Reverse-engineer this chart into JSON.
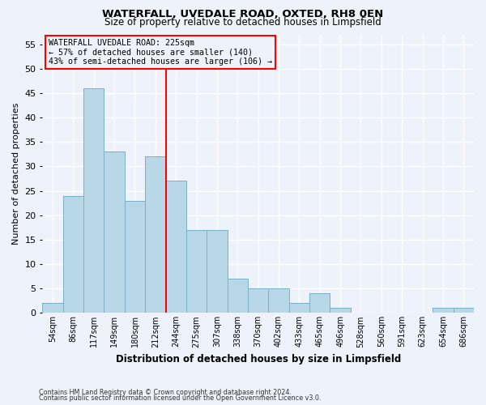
{
  "title": "WATERFALL, UVEDALE ROAD, OXTED, RH8 0EN",
  "subtitle": "Size of property relative to detached houses in Limpsfield",
  "xlabel": "Distribution of detached houses by size in Limpsfield",
  "ylabel": "Number of detached properties",
  "footer_lines": [
    "Contains HM Land Registry data © Crown copyright and database right 2024.",
    "Contains public sector information licensed under the Open Government Licence v3.0."
  ],
  "bin_labels": [
    "54sqm",
    "86sqm",
    "117sqm",
    "149sqm",
    "180sqm",
    "212sqm",
    "244sqm",
    "275sqm",
    "307sqm",
    "338sqm",
    "370sqm",
    "402sqm",
    "433sqm",
    "465sqm",
    "496sqm",
    "528sqm",
    "560sqm",
    "591sqm",
    "623sqm",
    "654sqm",
    "686sqm"
  ],
  "bar_heights": [
    2,
    24,
    46,
    33,
    23,
    32,
    27,
    17,
    17,
    7,
    5,
    5,
    2,
    4,
    1,
    0,
    0,
    0,
    0,
    1,
    1
  ],
  "bar_color": "#b8d8e8",
  "bar_edge_color": "#7ab0c8",
  "vline_color": "red",
  "vline_position": 5.5,
  "ylim": [
    0,
    57
  ],
  "yticks": [
    0,
    5,
    10,
    15,
    20,
    25,
    30,
    35,
    40,
    45,
    50,
    55
  ],
  "annotation_title": "WATERFALL UVEDALE ROAD: 225sqm",
  "annotation_line2": "← 57% of detached houses are smaller (140)",
  "annotation_line3": "43% of semi-detached houses are larger (106) →",
  "annotation_box_color": "red",
  "annotation_text_color": "black",
  "background_color": "#eef2fa"
}
